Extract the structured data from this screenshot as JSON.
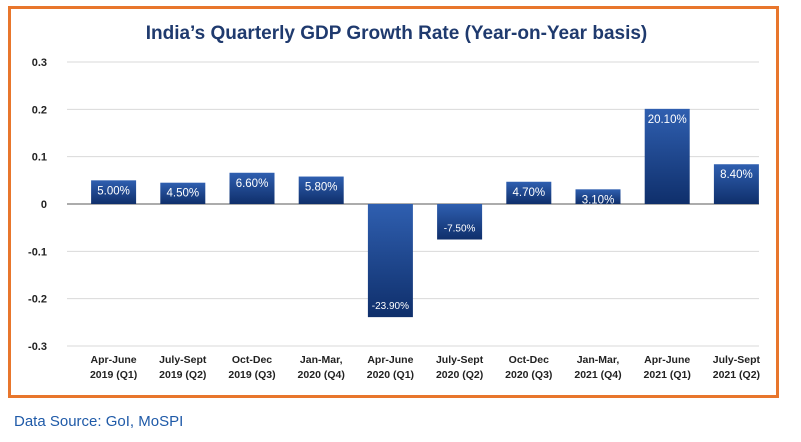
{
  "chart_data": {
    "type": "bar",
    "title": "India’s Quarterly GDP Growth Rate (Year-on-Year basis)",
    "xlabel": "",
    "ylabel": "",
    "ylim": [
      -0.3,
      0.3
    ],
    "yticks": [
      "0.3",
      "0.2",
      "0.1",
      "0",
      "-0.1",
      "-0.2",
      "-0.3"
    ],
    "ytick_values": [
      0.3,
      0.2,
      0.1,
      0,
      -0.1,
      -0.2,
      -0.3
    ],
    "grid": true,
    "bar_color_top": "#2f5fb0",
    "bar_color_bottom": "#0f2f6b",
    "categories": [
      [
        "Apr-June",
        "2019 (Q1)"
      ],
      [
        "July-Sept",
        "2019 (Q2)"
      ],
      [
        "Oct-Dec",
        "2019 (Q3)"
      ],
      [
        "Jan-Mar,",
        "2020 (Q4)"
      ],
      [
        "Apr-June",
        "2020 (Q1)"
      ],
      [
        "July-Sept",
        "2020 (Q2)"
      ],
      [
        "Oct-Dec",
        "2020 (Q3)"
      ],
      [
        "Jan-Mar,",
        "2021 (Q4)"
      ],
      [
        "Apr-June",
        "2021 (Q1)"
      ],
      [
        "July-Sept",
        "2021 (Q2)"
      ]
    ],
    "values": [
      0.05,
      0.045,
      0.066,
      0.058,
      -0.239,
      -0.075,
      0.047,
      0.031,
      0.201,
      0.084
    ],
    "data_labels": [
      "5.00%",
      "4.50%",
      "6.60%",
      "5.80%",
      "-23.90%",
      "-7.50%",
      "4.70%",
      "3.10%",
      "20.10%",
      "8.40%"
    ]
  },
  "source": "Data Source: GoI, MoSPI"
}
